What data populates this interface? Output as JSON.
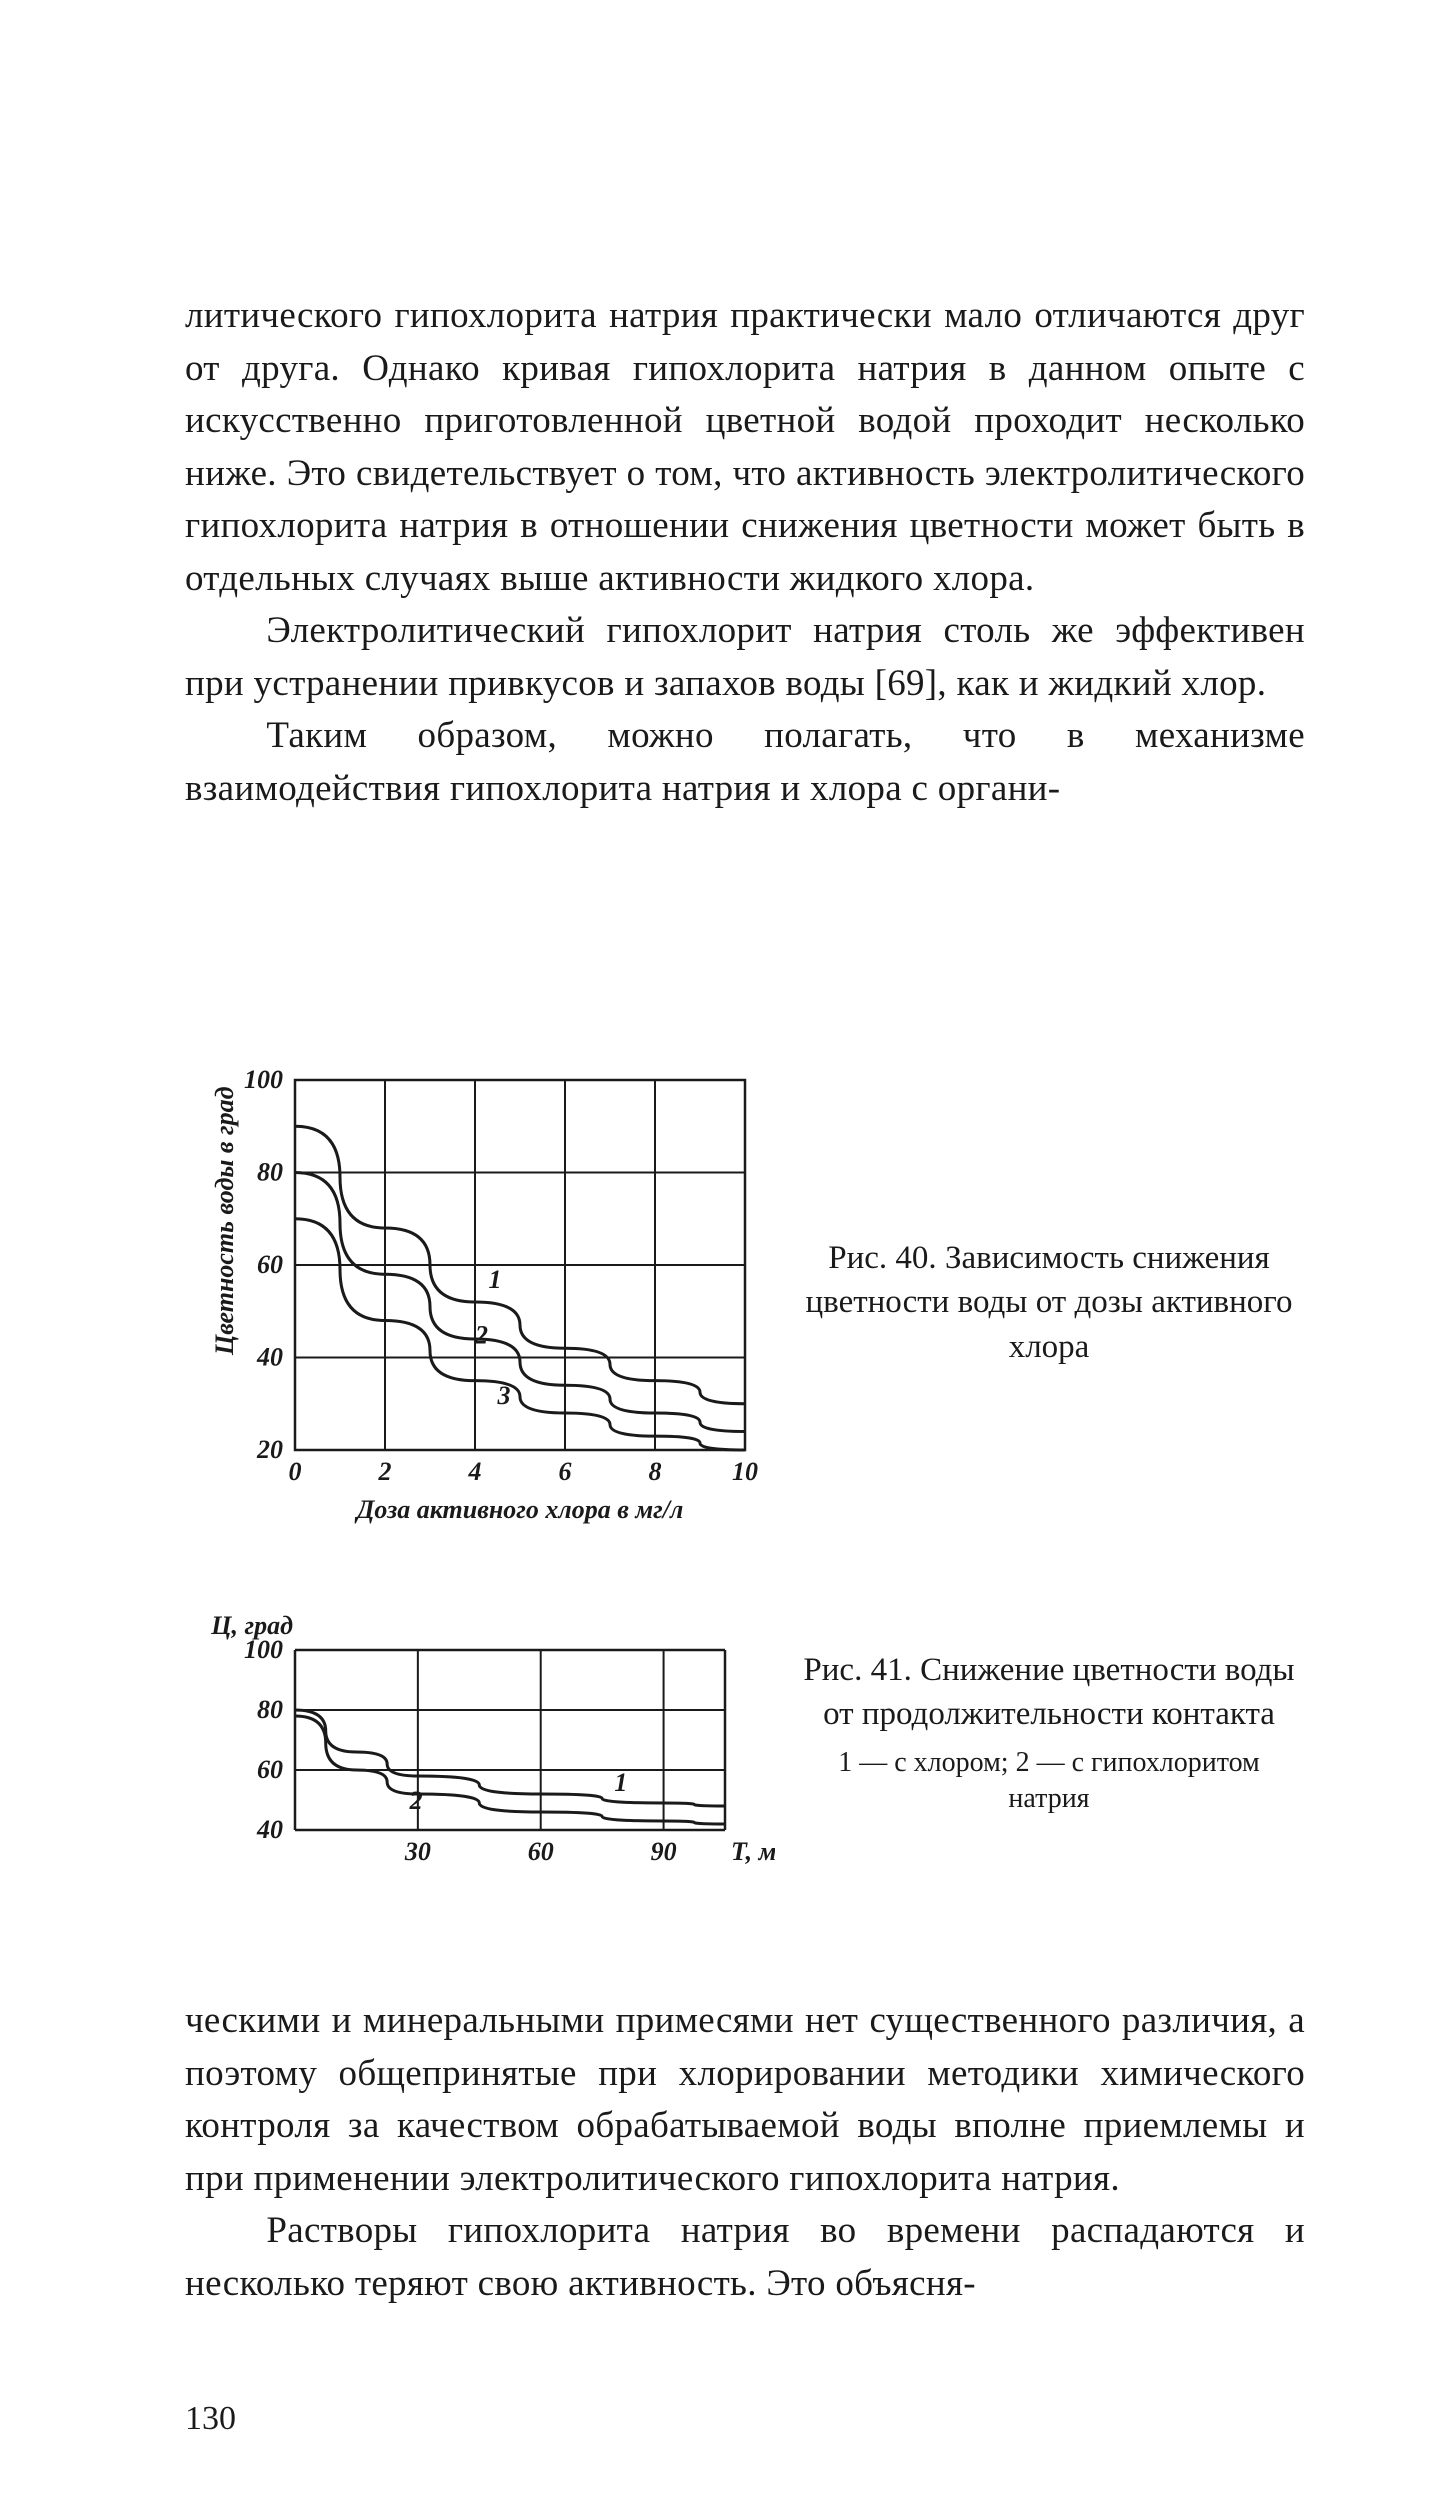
{
  "text": {
    "para1": "литического гипохлорита натрия практически мало от­личаются друг от друга. Однако кривая гипохлорита натрия в данном опыте с искусственно приготовленной цветной водой проходит несколько ниже. Это свидетель­ствует о том, что активность электролитического гипо­хлорита натрия в отношении снижения цветности может быть в отдельных случаях выше активности жидкого хлора.",
    "para2": "Электролитический гипохлорит натрия столь же эф­фективен при устранении привкусов и запахов воды [69], как и жидкий хлор.",
    "para3": "Таким образом, можно полагать, что в механизме взаимодействия гипохлорита натрия и хлора с органи-",
    "para4": "ческими и минеральными примесями нет существенного различия, а поэтому общепринятые при хлорировании методики химического контроля за качеством обраба­тываемой воды вполне приемлемы и при применении электролитического гипохлорита натрия.",
    "para5": "Растворы гипохлорита натрия во времени распада­ются и несколько теряют свою активность. Это объясня-"
  },
  "fig40": {
    "caption_prefix": "Рис. 40.",
    "caption": "Зависимость снижения цветности воды от дозы актив­ного хлора",
    "ylabel": "Цветность воды в град",
    "xlabel": "Доза активного хлора в мг/л",
    "yticks": [
      20,
      40,
      60,
      80,
      100
    ],
    "xticks": [
      0,
      2,
      4,
      6,
      8,
      10
    ],
    "ylim": [
      20,
      100
    ],
    "xlim": [
      0,
      10
    ],
    "curve_labels": [
      "1",
      "2",
      "3"
    ],
    "curves": {
      "1": [
        [
          0,
          90
        ],
        [
          2,
          68
        ],
        [
          4,
          52
        ],
        [
          6,
          42
        ],
        [
          8,
          35
        ],
        [
          10,
          30
        ]
      ],
      "2": [
        [
          0,
          80
        ],
        [
          2,
          58
        ],
        [
          4,
          44
        ],
        [
          6,
          34
        ],
        [
          8,
          28
        ],
        [
          10,
          24
        ]
      ],
      "3": [
        [
          0,
          70
        ],
        [
          2,
          48
        ],
        [
          4,
          35
        ],
        [
          6,
          28
        ],
        [
          8,
          23
        ],
        [
          10,
          20
        ]
      ]
    },
    "colors": {
      "line": "#1a1a1a",
      "bg": "#ffffff"
    }
  },
  "fig41": {
    "caption_prefix": "Рис. 41.",
    "caption": "Снижение цветности воды от продолжительности контакта",
    "legend": "1 — с хлором; 2 — с гипохло­ритом натрия",
    "ylabel": "Ц, град",
    "xlabel": "Т, мин",
    "yticks": [
      40,
      60,
      80,
      100
    ],
    "xticks": [
      30,
      60,
      90
    ],
    "ylim": [
      40,
      100
    ],
    "xlim": [
      0,
      105
    ],
    "curve_labels": [
      "1",
      "2"
    ],
    "curves": {
      "1": [
        [
          0,
          80
        ],
        [
          15,
          66
        ],
        [
          30,
          58
        ],
        [
          60,
          52
        ],
        [
          90,
          49
        ],
        [
          105,
          48
        ]
      ],
      "2": [
        [
          0,
          78
        ],
        [
          15,
          60
        ],
        [
          30,
          52
        ],
        [
          60,
          46
        ],
        [
          90,
          43
        ],
        [
          105,
          42
        ]
      ]
    },
    "colors": {
      "line": "#1a1a1a",
      "bg": "#ffffff"
    }
  },
  "page_number": "130"
}
